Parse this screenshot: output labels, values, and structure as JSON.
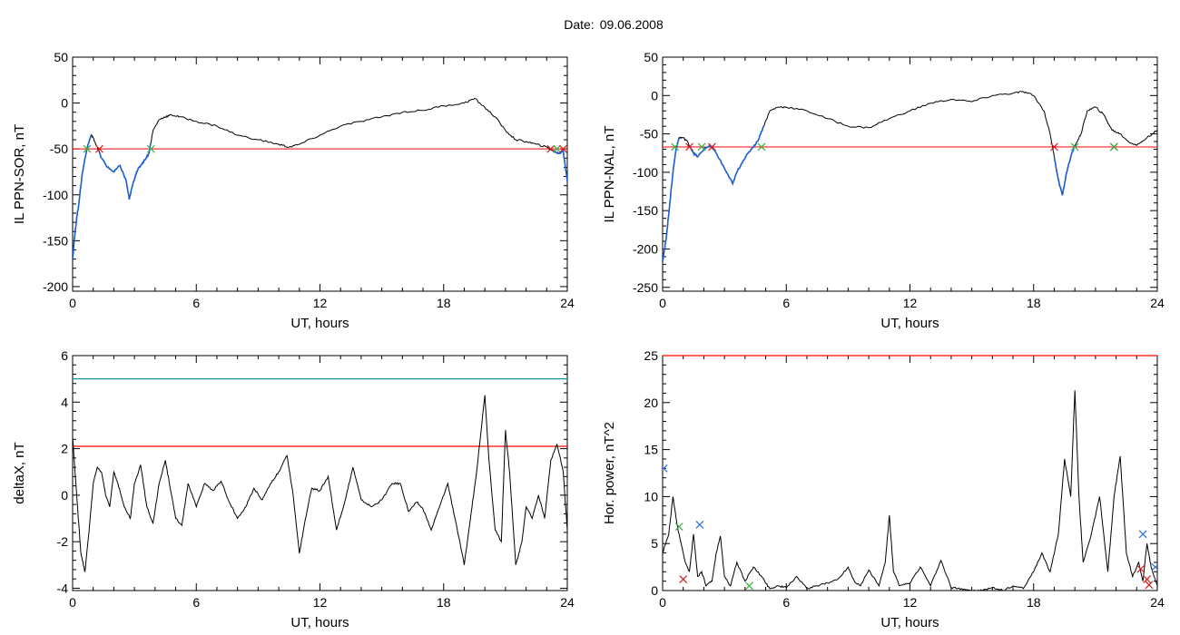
{
  "header": {
    "date_label": "Date:",
    "date_value": "09.06.2008"
  },
  "colors": {
    "trace": "#000000",
    "threshold_red": "#ff0000",
    "threshold_blue": "#1b8fb0",
    "substorm_blue": "#1a5fd0",
    "marker_red": "#d02020",
    "marker_green": "#3cb040",
    "marker_blue": "#2a70d0"
  },
  "chart_data": [
    {
      "id": "sor",
      "type": "line",
      "ylabel": "IL PPN-SOR, nT",
      "xlabel": "UT, hours",
      "xlim": [
        0,
        24
      ],
      "ylim": [
        -205,
        50
      ],
      "xticks": [
        0,
        6,
        12,
        18,
        24
      ],
      "yticks": [
        50,
        0,
        -50,
        -100,
        -150,
        -200
      ],
      "threshold": -50,
      "series": [
        {
          "x": [
            0,
            0.1,
            0.2,
            0.3,
            0.45,
            0.6,
            0.75,
            0.9,
            1.0,
            1.2,
            1.4,
            1.7,
            2.0,
            2.3,
            2.6,
            2.75,
            2.9,
            3.1,
            3.3,
            3.5,
            3.7,
            3.9,
            4.2,
            4.5,
            4.8,
            5.2,
            6,
            7,
            8,
            9,
            10,
            10.5,
            11,
            12,
            13,
            14,
            15,
            16,
            17,
            18,
            19,
            19.5,
            20,
            20.5,
            21,
            21.5,
            22,
            22.5,
            23,
            23.3,
            23.6,
            23.8,
            24
          ],
          "y": [
            -170,
            -145,
            -125,
            -110,
            -80,
            -60,
            -45,
            -35,
            -38,
            -48,
            -60,
            -70,
            -75,
            -68,
            -85,
            -105,
            -90,
            -75,
            -68,
            -62,
            -55,
            -30,
            -18,
            -15,
            -13,
            -15,
            -20,
            -25,
            -35,
            -40,
            -45,
            -48,
            -45,
            -35,
            -25,
            -20,
            -15,
            -10,
            -8,
            -3,
            0,
            5,
            -5,
            -15,
            -30,
            -40,
            -42,
            -45,
            -48,
            -52,
            -55,
            -52,
            -85
          ]
        }
      ],
      "blue_segments": [
        [
          0,
          0.9
        ],
        [
          1.3,
          3.8
        ],
        [
          23.2,
          24
        ]
      ],
      "markers": [
        {
          "x": 0.7,
          "y": -50,
          "color": "green"
        },
        {
          "x": 1.3,
          "y": -50,
          "color": "red"
        },
        {
          "x": 3.8,
          "y": -50,
          "color": "green"
        },
        {
          "x": 23.2,
          "y": -50,
          "color": "red"
        },
        {
          "x": 23.5,
          "y": -50,
          "color": "green"
        },
        {
          "x": 23.8,
          "y": -50,
          "color": "red"
        }
      ]
    },
    {
      "id": "nal",
      "type": "line",
      "ylabel": "IL PPN-NAL, nT",
      "xlabel": "UT, hours",
      "xlim": [
        0,
        24
      ],
      "ylim": [
        -255,
        50
      ],
      "xticks": [
        0,
        6,
        12,
        18,
        24
      ],
      "yticks": [
        50,
        0,
        -50,
        -100,
        -150,
        -200,
        -250
      ],
      "threshold": -67,
      "series": [
        {
          "x": [
            0,
            0.1,
            0.2,
            0.35,
            0.5,
            0.65,
            0.8,
            1.0,
            1.2,
            1.5,
            1.7,
            2.0,
            2.3,
            2.6,
            3.0,
            3.4,
            3.6,
            3.9,
            4.3,
            4.6,
            4.9,
            5.2,
            5.6,
            6,
            7,
            8,
            9,
            10,
            11,
            12,
            13,
            14,
            15,
            16,
            17,
            17.5,
            18,
            18.5,
            18.8,
            19.0,
            19.2,
            19.4,
            19.6,
            19.8,
            20,
            20.3,
            20.6,
            21,
            21.4,
            21.8,
            22.2,
            22.6,
            23,
            23.5,
            24
          ],
          "y": [
            -215,
            -200,
            -180,
            -140,
            -100,
            -70,
            -55,
            -55,
            -60,
            -75,
            -80,
            -70,
            -65,
            -75,
            -95,
            -115,
            -100,
            -85,
            -70,
            -60,
            -40,
            -20,
            -15,
            -15,
            -20,
            -30,
            -40,
            -42,
            -30,
            -20,
            -10,
            -5,
            -8,
            0,
            3,
            5,
            0,
            -20,
            -50,
            -80,
            -110,
            -130,
            -100,
            -80,
            -65,
            -50,
            -20,
            -15,
            -25,
            -45,
            -50,
            -60,
            -65,
            -55,
            -45
          ]
        }
      ],
      "blue_segments": [
        [
          0,
          0.8
        ],
        [
          1.3,
          4.9
        ],
        [
          19.0,
          20.0
        ]
      ],
      "markers": [
        {
          "x": 0.6,
          "y": -67,
          "color": "green"
        },
        {
          "x": 1.3,
          "y": -67,
          "color": "red"
        },
        {
          "x": 1.9,
          "y": -67,
          "color": "green"
        },
        {
          "x": 2.4,
          "y": -67,
          "color": "red"
        },
        {
          "x": 4.8,
          "y": -67,
          "color": "green"
        },
        {
          "x": 19.0,
          "y": -67,
          "color": "red"
        },
        {
          "x": 20.0,
          "y": -67,
          "color": "green"
        },
        {
          "x": 21.9,
          "y": -67,
          "color": "red"
        },
        {
          "x": 21.9,
          "y": -67,
          "color": "green"
        }
      ]
    },
    {
      "id": "deltax",
      "type": "line",
      "ylabel": "deltaX, nT",
      "xlabel": "UT, hours",
      "xlim": [
        0,
        24
      ],
      "ylim": [
        -4.1,
        6
      ],
      "xticks": [
        0,
        6,
        12,
        18,
        24
      ],
      "yticks": [
        6,
        4,
        2,
        0,
        -2,
        -4
      ],
      "hlines": [
        {
          "y": 5.0,
          "color": "teal"
        },
        {
          "y": 2.1,
          "color": "red"
        }
      ],
      "series": [
        {
          "x": [
            0,
            0.2,
            0.4,
            0.6,
            0.8,
            1.0,
            1.2,
            1.4,
            1.6,
            1.8,
            2.0,
            2.2,
            2.5,
            2.8,
            3.0,
            3.3,
            3.6,
            3.9,
            4.2,
            4.5,
            4.8,
            5.0,
            5.3,
            5.6,
            6,
            6.4,
            6.8,
            7.2,
            7.6,
            8,
            8.4,
            8.8,
            9.2,
            9.6,
            10,
            10.4,
            10.7,
            11.0,
            11.3,
            11.6,
            12,
            12.4,
            12.8,
            13.2,
            13.6,
            14,
            14.5,
            15,
            15.5,
            15.9,
            16.3,
            16.7,
            17,
            17.4,
            17.8,
            18.2,
            18.6,
            19,
            19.3,
            19.6,
            20,
            20.2,
            20.5,
            20.8,
            21.0,
            21.2,
            21.5,
            21.8,
            22.0,
            22.3,
            22.6,
            22.9,
            23.2,
            23.5,
            23.8,
            24
          ],
          "y": [
            2.5,
            0,
            -2.5,
            -3.3,
            -1.5,
            0.5,
            1.2,
            1.0,
            0,
            -0.5,
            1.0,
            0.5,
            -0.5,
            -1.0,
            0.5,
            1.3,
            -0.5,
            -1.2,
            0.5,
            1.5,
            0,
            -1,
            -1.3,
            0.5,
            -0.5,
            0.5,
            0.2,
            0.6,
            -0.3,
            -1.0,
            -0.5,
            0.3,
            -0.2,
            0.5,
            1.0,
            1.7,
            0,
            -2.5,
            -1.0,
            0.3,
            0.2,
            0.8,
            -1.5,
            -0.3,
            1.2,
            -0.2,
            -0.5,
            -0.2,
            0.5,
            0.5,
            -0.7,
            -0.3,
            -0.6,
            -1.5,
            -0.5,
            0.5,
            -1.2,
            -3.0,
            -1.0,
            1.0,
            4.3,
            1.5,
            -1.5,
            -2.0,
            2.8,
            1.0,
            -3.0,
            -2.0,
            -0.5,
            -1.0,
            0,
            -1.0,
            1.5,
            2.2,
            1.0,
            -1.5
          ]
        }
      ]
    },
    {
      "id": "power",
      "type": "line",
      "ylabel": "Hor. power, nT^2",
      "xlabel": "UT, hours",
      "xlim": [
        0,
        24
      ],
      "ylim": [
        0,
        25
      ],
      "xticks": [
        0,
        6,
        12,
        18,
        24
      ],
      "yticks": [
        25,
        20,
        15,
        10,
        5,
        0
      ],
      "hlines": [
        {
          "y": 25,
          "color": "red"
        }
      ],
      "series": [
        {
          "x": [
            0,
            0.3,
            0.5,
            0.7,
            0.9,
            1.1,
            1.3,
            1.5,
            1.7,
            1.9,
            2.1,
            2.4,
            2.6,
            2.8,
            3.0,
            3.3,
            3.6,
            4.0,
            4.4,
            4.8,
            5.2,
            5.6,
            6,
            6.5,
            7,
            7.5,
            8,
            8.5,
            9,
            9.3,
            9.6,
            10,
            10.5,
            10.8,
            11.0,
            11.2,
            11.5,
            12,
            12.5,
            13,
            13.5,
            14,
            14.5,
            15,
            15.5,
            16,
            16.5,
            17,
            17.5,
            18,
            18.4,
            18.8,
            19.2,
            19.5,
            19.8,
            20.0,
            20.2,
            20.4,
            20.8,
            21.2,
            21.6,
            21.9,
            22.2,
            22.5,
            22.8,
            23.1,
            23.3,
            23.5,
            23.7,
            24
          ],
          "y": [
            4,
            6,
            10,
            7,
            5,
            3,
            2,
            6,
            1.5,
            2,
            0.5,
            1,
            4,
            5.8,
            1.5,
            0.5,
            3,
            1,
            2.5,
            1.5,
            0.2,
            0.5,
            0.3,
            1.5,
            0.2,
            0.5,
            0.8,
            1.2,
            2.5,
            1,
            0.5,
            2.2,
            0.5,
            3,
            8,
            2,
            0.5,
            0.8,
            2.5,
            0.5,
            3.2,
            0.3,
            0.2,
            0,
            0,
            0.3,
            0,
            0.5,
            0.2,
            2,
            4,
            2,
            6,
            14,
            10,
            21.3,
            10,
            3,
            6,
            10,
            2,
            10,
            14.3,
            4,
            1.5,
            3,
            1,
            5,
            2.5,
            0.5
          ]
        }
      ],
      "markers": [
        {
          "x": 0.05,
          "y": 13,
          "color": "blue"
        },
        {
          "x": 0.8,
          "y": 6.8,
          "color": "green"
        },
        {
          "x": 1.0,
          "y": 1.2,
          "color": "red"
        },
        {
          "x": 1.8,
          "y": 7.0,
          "color": "blue"
        },
        {
          "x": 4.2,
          "y": 0.5,
          "color": "green"
        },
        {
          "x": 23.3,
          "y": 6.0,
          "color": "blue"
        },
        {
          "x": 23.2,
          "y": 2.3,
          "color": "red"
        },
        {
          "x": 23.5,
          "y": 1.2,
          "color": "red"
        },
        {
          "x": 23.6,
          "y": 0.6,
          "color": "red"
        },
        {
          "x": 23.9,
          "y": 2.5,
          "color": "blue"
        }
      ]
    }
  ]
}
